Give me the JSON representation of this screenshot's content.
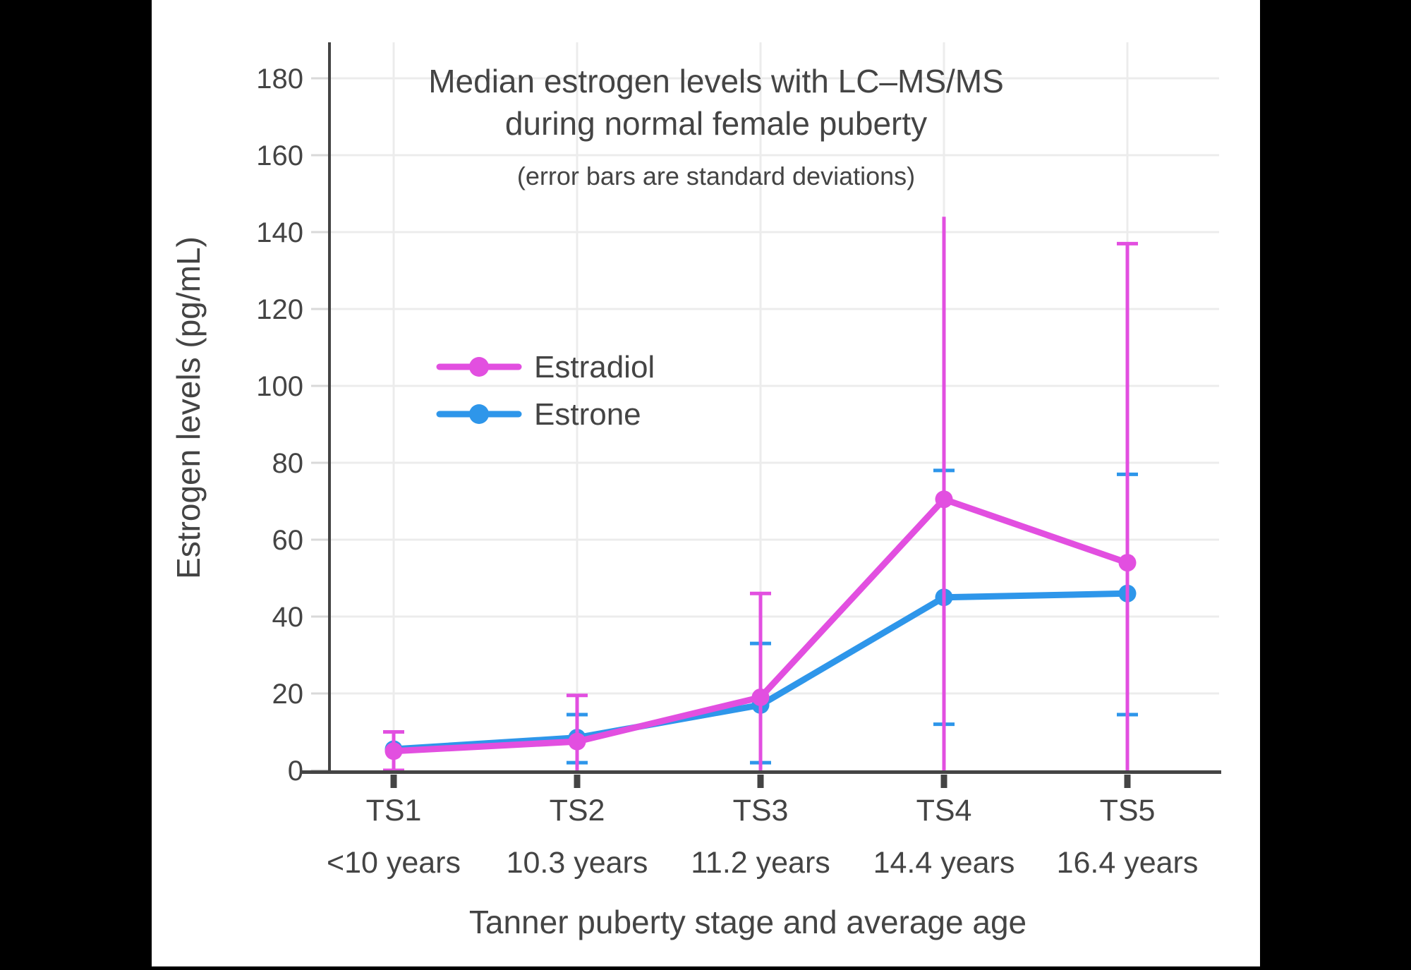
{
  "page": {
    "background": "#000000",
    "panel_background": "#FFFFFF"
  },
  "colors": {
    "estradiol": "#E24FE0",
    "estrone": "#2E96EA",
    "axis_text": "#444444",
    "axis_line": "#444444",
    "gridline": "#ECECEC",
    "tick_mark": "#D9D9D9"
  },
  "chart_data": {
    "type": "line",
    "title_line1": "Median estrogen levels with LC–MS/MS",
    "title_line2": "during normal female puberty",
    "subtitle": "(error bars are standard deviations)",
    "xlabel": "Tanner puberty stage and average age",
    "ylabel": "Estrogen levels (pg/mL)",
    "units": "pg/mL",
    "ylim": [
      0,
      189
    ],
    "yticks": [
      0,
      20,
      40,
      60,
      80,
      100,
      120,
      140,
      160,
      180
    ],
    "grid": true,
    "legend": {
      "position": "inside-upper-left",
      "entries": [
        "Estradiol",
        "Estrone"
      ]
    },
    "categories": [
      "TS1",
      "TS2",
      "TS3",
      "TS4",
      "TS5"
    ],
    "category_ages": [
      "<10 years",
      "10.3 years",
      "11.2 years",
      "14.4 years",
      "16.4 years"
    ],
    "series": [
      {
        "name": "Estradiol",
        "color": "#E24FE0",
        "values": [
          5,
          7.5,
          19,
          70.5,
          54
        ],
        "error_hi": [
          10,
          19.5,
          46,
          144,
          137
        ],
        "cap_hi": [
          true,
          true,
          true,
          false,
          true
        ],
        "error_lo": [
          0,
          null,
          null,
          null,
          null
        ],
        "cap_lo": [
          true,
          false,
          false,
          false,
          false
        ]
      },
      {
        "name": "Estrone",
        "color": "#2E96EA",
        "values": [
          5.5,
          8.5,
          17,
          45,
          46
        ],
        "error_hi": [
          null,
          14.5,
          33,
          78,
          77
        ],
        "cap_hi": [
          false,
          true,
          true,
          true,
          true
        ],
        "error_lo": [
          null,
          2,
          2,
          12,
          14.5
        ],
        "cap_lo": [
          false,
          true,
          true,
          true,
          true
        ]
      }
    ]
  }
}
